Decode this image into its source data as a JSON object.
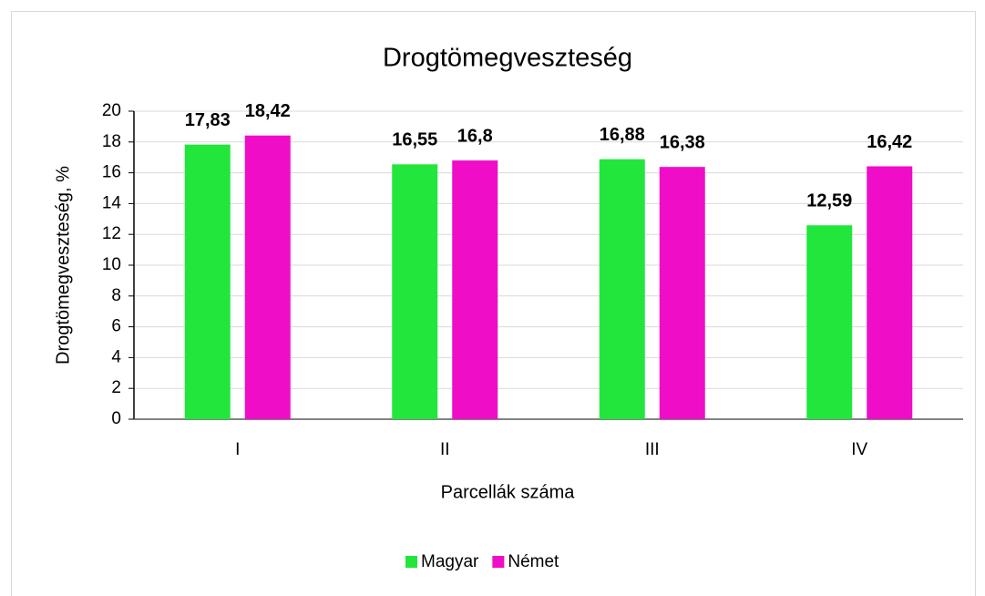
{
  "chart_data": {
    "type": "bar",
    "title": "Drogtömegveszteség",
    "x_label": "Parcellák száma",
    "y_label": "Drogtömegveszteség, %",
    "categories": [
      "I",
      "II",
      "III",
      "IV"
    ],
    "series": [
      {
        "name": "Magyar",
        "color": "#22e63c",
        "values": [
          17.83,
          16.55,
          16.88,
          12.59
        ],
        "value_labels": [
          "17,83",
          "16,55",
          "16,88",
          "12,59"
        ]
      },
      {
        "name": "Német",
        "color": "#f00dc8",
        "values": [
          18.42,
          16.8,
          16.38,
          16.42
        ],
        "value_labels": [
          "18,42",
          "16,8",
          "16,38",
          "16,42"
        ]
      }
    ],
    "ylim": [
      0,
      20
    ],
    "yticks": [
      0,
      2,
      4,
      6,
      8,
      10,
      12,
      14,
      16,
      18,
      20
    ],
    "grid": true,
    "legend": "bottom"
  }
}
